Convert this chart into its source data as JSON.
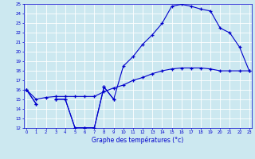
{
  "title": "Graphe des températures (°c)",
  "bg_color": "#cce8f0",
  "line_color": "#0000cc",
  "hours": [
    0,
    1,
    2,
    3,
    4,
    5,
    6,
    7,
    8,
    9,
    10,
    11,
    12,
    13,
    14,
    15,
    16,
    17,
    18,
    19,
    20,
    21,
    22,
    23
  ],
  "line_main": [
    16,
    14.5,
    null,
    15,
    15,
    12,
    12,
    12,
    16.3,
    15,
    18.5,
    19.5,
    20.8,
    21.8,
    23,
    24.8,
    25.0,
    24.8,
    24.5,
    24.3,
    22.5,
    22.0,
    20.5,
    18.0
  ],
  "line_dip": [
    16,
    14.5,
    null,
    15,
    15,
    12,
    12,
    12,
    16.3,
    15,
    null,
    null,
    null,
    null,
    null,
    null,
    null,
    null,
    null,
    null,
    null,
    null,
    null,
    null
  ],
  "line_flat": [
    16.0,
    15.0,
    15.2,
    15.3,
    15.3,
    15.3,
    15.3,
    15.3,
    15.8,
    16.2,
    16.5,
    17.0,
    17.3,
    17.7,
    18.0,
    18.2,
    18.3,
    18.3,
    18.3,
    18.2,
    18.0,
    18.0,
    18.0,
    18.0
  ],
  "ylim": [
    12,
    25
  ],
  "yticks": [
    12,
    13,
    14,
    15,
    16,
    17,
    18,
    19,
    20,
    21,
    22,
    23,
    24,
    25
  ],
  "xticks": [
    0,
    1,
    2,
    3,
    4,
    5,
    6,
    7,
    8,
    9,
    10,
    11,
    12,
    13,
    14,
    15,
    16,
    17,
    18,
    19,
    20,
    21,
    22,
    23
  ],
  "figsize": [
    3.2,
    2.0
  ],
  "dpi": 100
}
